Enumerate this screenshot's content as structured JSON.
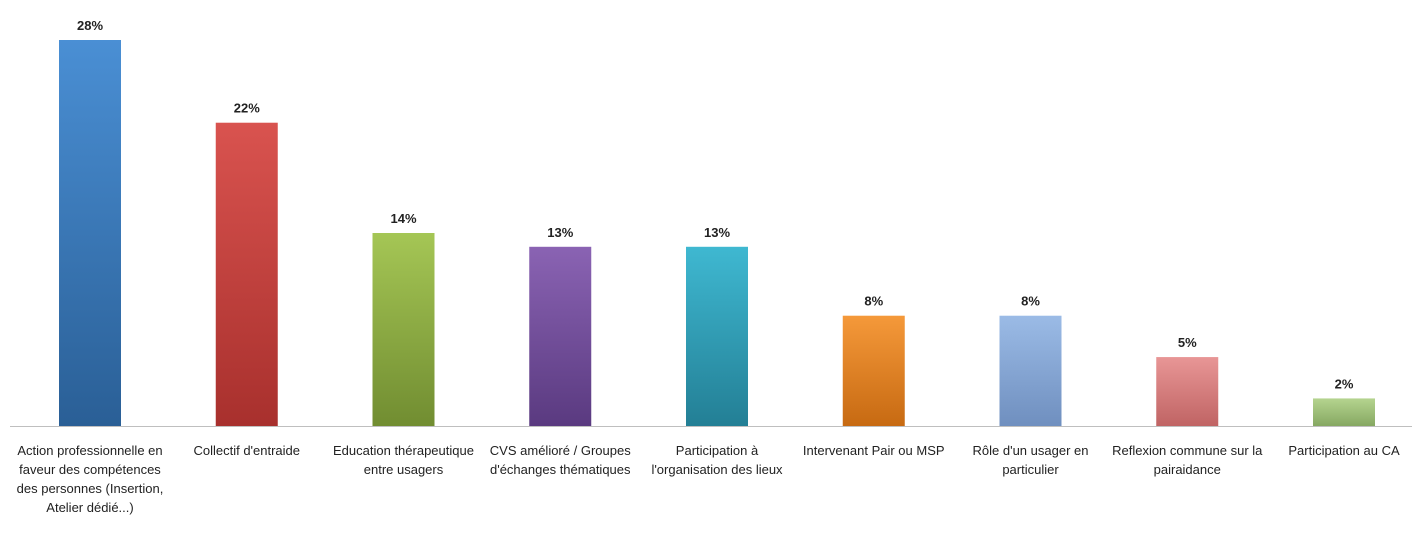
{
  "chart_data": {
    "type": "bar",
    "categories": [
      "Action professionnelle en faveur des compétences des personnes (Insertion, Atelier dédié...)",
      "Collectif d'entraide",
      "Education thérapeutique entre usagers",
      "CVS amélioré / Groupes d'échanges thématiques",
      "Participation à l'organisation des lieux",
      "Intervenant Pair ou MSP",
      "Rôle d'un usager en particulier",
      "Reflexion commune sur la pairaidance",
      "Participation au CA"
    ],
    "values": [
      28,
      22,
      14,
      13,
      13,
      8,
      8,
      5,
      2
    ],
    "data_labels": [
      "28%",
      "22%",
      "14%",
      "13%",
      "13%",
      "8%",
      "8%",
      "5%",
      "2%"
    ],
    "unit": "%",
    "title": "",
    "xlabel": "",
    "ylabel": "",
    "ylim": [
      0,
      28
    ],
    "grid": false,
    "legend": "none",
    "colors": {
      "top": [
        "#4a8fd4",
        "#d9534f",
        "#a5c655",
        "#8a63b3",
        "#3fb8d1",
        "#f5993a",
        "#9bbbe6",
        "#e89696",
        "#b5d48f"
      ],
      "bottom": [
        "#2a5f96",
        "#a8302d",
        "#718d31",
        "#5a3a80",
        "#237f95",
        "#c76a12",
        "#6f8fbf",
        "#c06464",
        "#86a862"
      ]
    }
  }
}
